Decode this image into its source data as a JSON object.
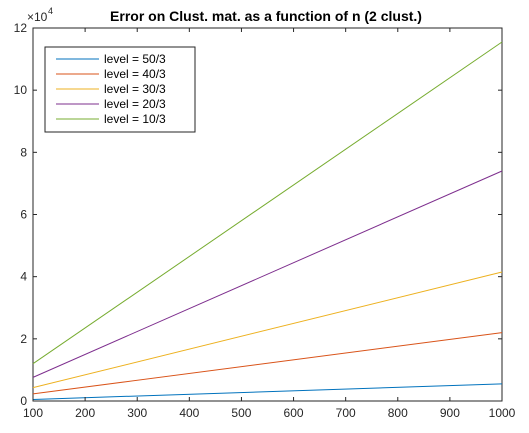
{
  "chart_data": {
    "type": "line",
    "title": "Error on Clust. mat. as a function of n (2 clust.)",
    "xlabel": "",
    "ylabel": "",
    "x": [
      100,
      1000
    ],
    "xlim": [
      100,
      1000
    ],
    "ylim": [
      0,
      120000
    ],
    "x_ticks": [
      100,
      200,
      300,
      400,
      500,
      600,
      700,
      800,
      900,
      1000
    ],
    "y_ticks": [
      0,
      20000,
      40000,
      60000,
      80000,
      100000,
      120000
    ],
    "y_tick_labels": [
      "0",
      "2",
      "4",
      "6",
      "8",
      "10",
      "12"
    ],
    "y_multiplier_label": "×10",
    "y_multiplier_exponent": "4",
    "grid": false,
    "legend_placement": "top-left",
    "series": [
      {
        "name": "level = 50/3",
        "color": "#0072BD",
        "values": [
          500,
          5500
        ]
      },
      {
        "name": "level = 40/3",
        "color": "#D95319",
        "values": [
          2300,
          22000
        ]
      },
      {
        "name": "level = 30/3",
        "color": "#EDB120",
        "values": [
          4300,
          41500
        ]
      },
      {
        "name": "level = 20/3",
        "color": "#7E2F8E",
        "values": [
          7600,
          74000
        ]
      },
      {
        "name": "level = 10/3",
        "color": "#77AC30",
        "values": [
          12000,
          115500
        ]
      }
    ]
  }
}
